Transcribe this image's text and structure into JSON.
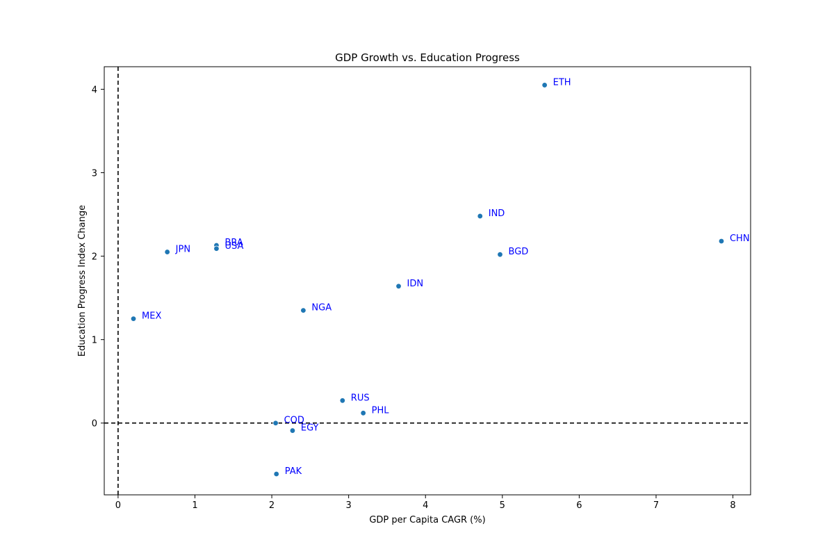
{
  "chart_data": {
    "type": "scatter",
    "title": "GDP Growth vs. Education Progress",
    "xlabel": "GDP per Capita CAGR (%)",
    "ylabel": "Education Progress Index Change",
    "xlim": [
      -0.18,
      8.23
    ],
    "ylim": [
      -0.86,
      4.27
    ],
    "x_ticks": [
      0,
      1,
      2,
      3,
      4,
      5,
      6,
      7,
      8
    ],
    "y_ticks": [
      0,
      1,
      2,
      3,
      4
    ],
    "grid": false,
    "reference_lines": {
      "x": 0,
      "y": 0,
      "style": "dashed"
    },
    "colors": {
      "point": "#1f77b4",
      "label": "#0000ff",
      "reference": "#000000"
    },
    "points": [
      {
        "label": "ETH",
        "x": 5.55,
        "y": 4.05
      },
      {
        "label": "IND",
        "x": 4.71,
        "y": 2.48
      },
      {
        "label": "CHN",
        "x": 7.85,
        "y": 2.18
      },
      {
        "label": "BGD",
        "x": 4.97,
        "y": 2.02
      },
      {
        "label": "BRA",
        "x": 1.28,
        "y": 2.13
      },
      {
        "label": "USA",
        "x": 1.28,
        "y": 2.09
      },
      {
        "label": "JPN",
        "x": 0.64,
        "y": 2.05
      },
      {
        "label": "IDN",
        "x": 3.65,
        "y": 1.64
      },
      {
        "label": "NGA",
        "x": 2.41,
        "y": 1.35
      },
      {
        "label": "MEX",
        "x": 0.2,
        "y": 1.25
      },
      {
        "label": "RUS",
        "x": 2.92,
        "y": 0.27
      },
      {
        "label": "PHL",
        "x": 3.19,
        "y": 0.12
      },
      {
        "label": "COD",
        "x": 2.05,
        "y": 0.0
      },
      {
        "label": "EGY",
        "x": 2.27,
        "y": -0.09
      },
      {
        "label": "PAK",
        "x": 2.06,
        "y": -0.61
      }
    ]
  }
}
